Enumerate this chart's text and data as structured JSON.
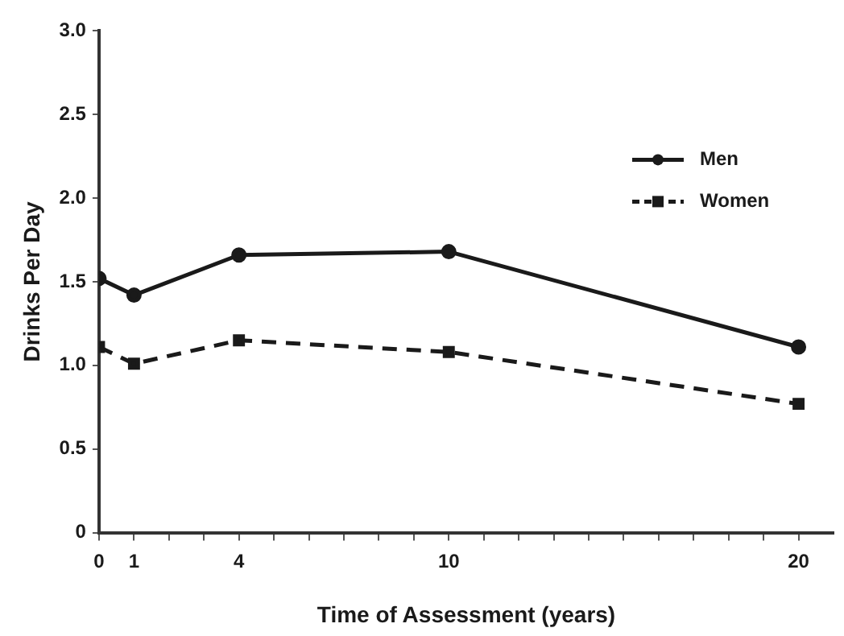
{
  "chart_data": {
    "type": "line",
    "xlabel": "Time of Assessment (years)",
    "ylabel": "Drinks Per Day",
    "x": [
      0,
      1,
      4,
      10,
      20
    ],
    "series": [
      {
        "name": "Men",
        "color": "#1a1a1a",
        "values": [
          1.52,
          1.42,
          1.66,
          1.68,
          1.11
        ],
        "marker": "circle",
        "line_style": "solid"
      },
      {
        "name": "Women",
        "color": "#1a1a1a",
        "values": [
          1.11,
          1.01,
          1.15,
          1.08,
          0.77
        ],
        "marker": "square",
        "line_style": "dashed"
      }
    ],
    "xlim": [
      0,
      21
    ],
    "xticks": [
      0,
      1,
      {
        "value": 2,
        "label": null
      },
      {
        "value": 3,
        "label": null
      },
      4,
      {
        "value": 5,
        "label": null
      },
      {
        "value": 6,
        "label": null
      },
      {
        "value": 7,
        "label": null
      },
      {
        "value": 8,
        "label": null
      },
      {
        "value": 9,
        "label": null
      },
      10,
      {
        "value": 11,
        "label": null
      },
      {
        "value": 12,
        "label": null
      },
      {
        "value": 13,
        "label": null
      },
      {
        "value": 14,
        "label": null
      },
      {
        "value": 15,
        "label": null
      },
      {
        "value": 16,
        "label": null
      },
      {
        "value": 17,
        "label": null
      },
      {
        "value": 18,
        "label": null
      },
      {
        "value": 19,
        "label": null
      },
      20
    ],
    "ylim": [
      0,
      3
    ],
    "yticks": [
      {
        "value": 0,
        "label": "0"
      },
      {
        "value": 0.5,
        "label": "0.5"
      },
      {
        "value": 1,
        "label": "1.0"
      },
      {
        "value": 1.5,
        "label": "1.5"
      },
      {
        "value": 2,
        "label": "2.0"
      },
      {
        "value": 2.5,
        "label": "2.5"
      },
      {
        "value": 3,
        "label": "3.0"
      }
    ],
    "grid": false,
    "legend": "top right"
  }
}
